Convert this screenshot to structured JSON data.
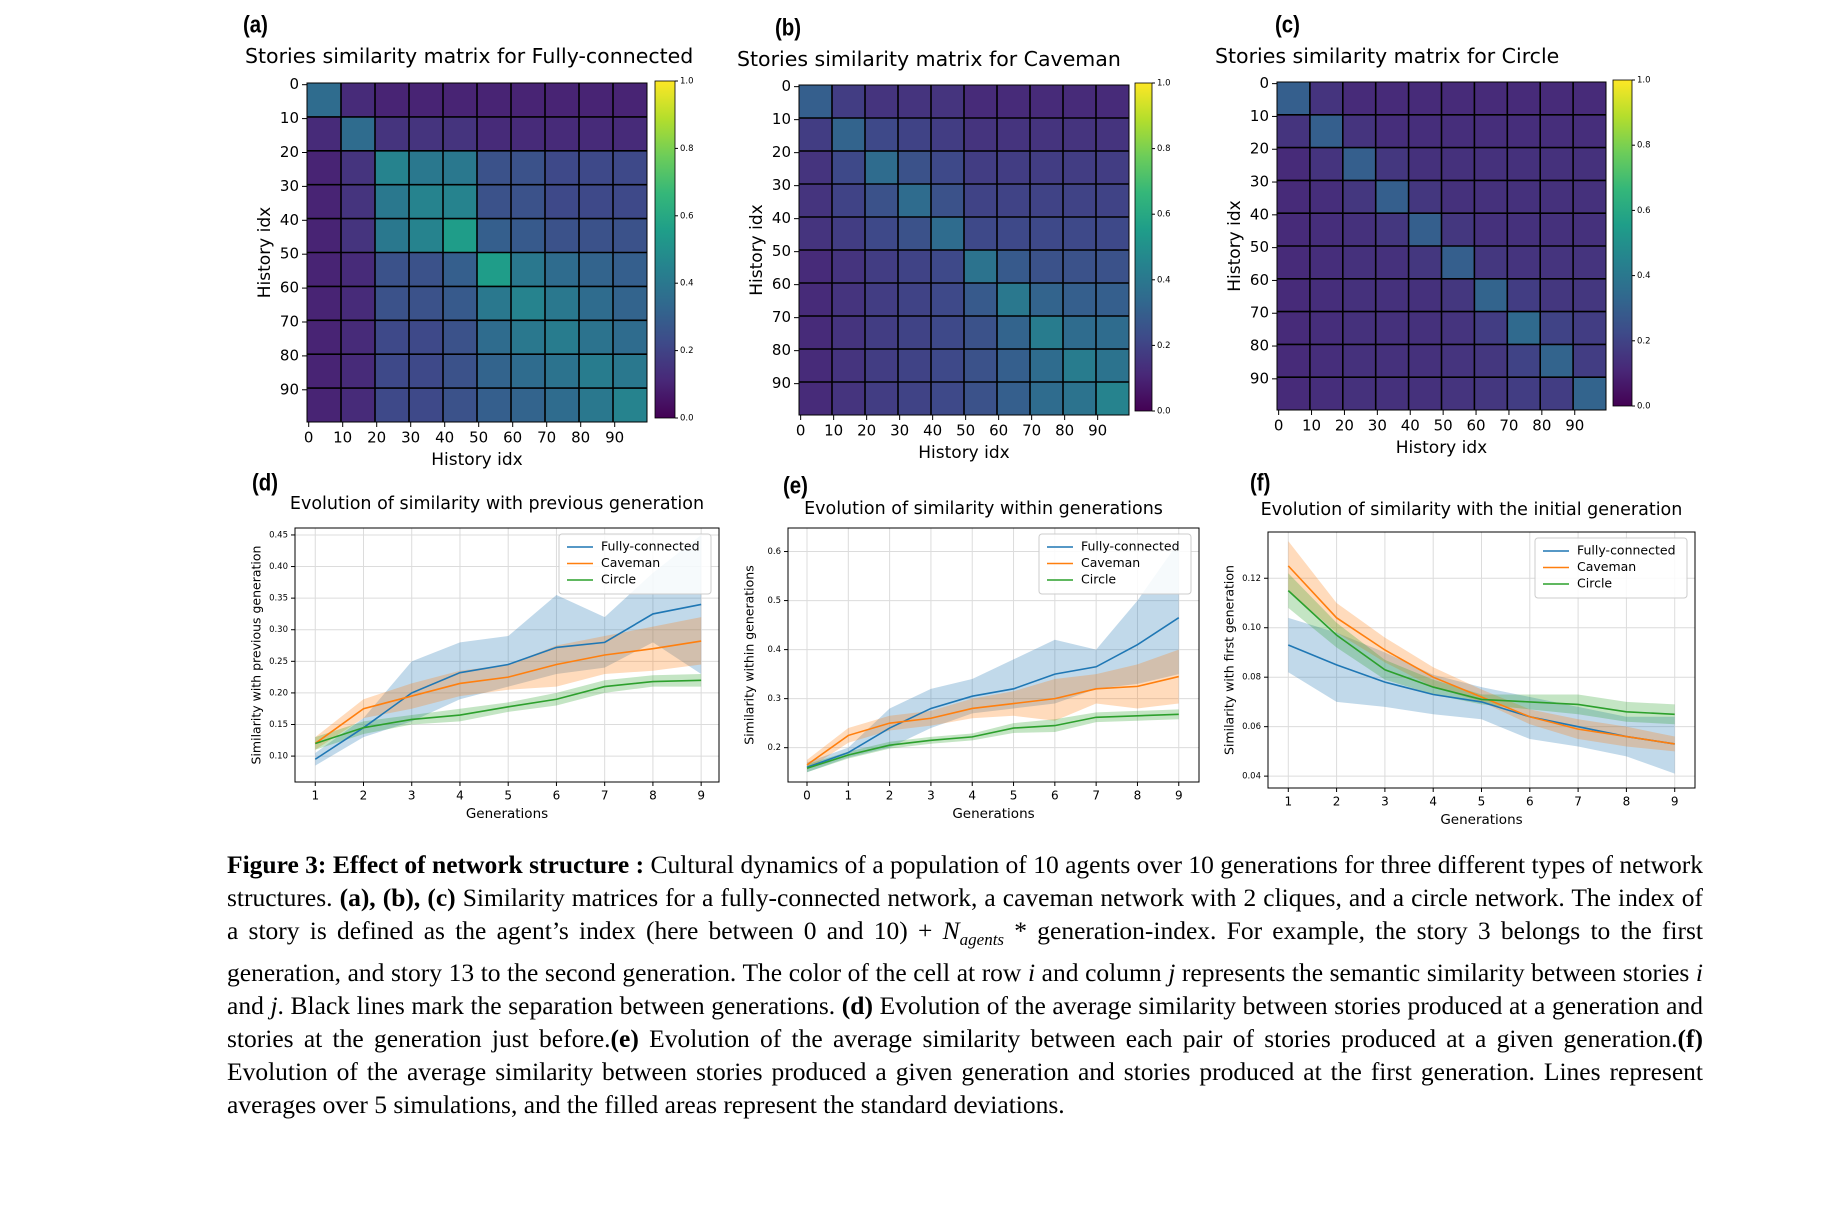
{
  "chart_data": [
    {
      "type": "heatmap",
      "panel_label": "(a)",
      "title": "Stories similarity matrix for Fully-connected",
      "xlabel": "History idx",
      "ylabel": "History idx",
      "xlim": [
        -0.5,
        99.5
      ],
      "ylim": [
        99.5,
        -0.5
      ],
      "xticks": [
        0,
        10,
        20,
        30,
        40,
        50,
        60,
        70,
        80,
        90
      ],
      "yticks": [
        0,
        10,
        20,
        30,
        40,
        50,
        60,
        70,
        80,
        90
      ],
      "zlim": [
        0,
        1
      ],
      "zticks": [
        {
          "value": 0,
          "label": "0.0"
        },
        0.2,
        0.4,
        0.6,
        0.8,
        {
          "value": 1,
          "label": "1.0"
        }
      ],
      "grid": true,
      "z": [
        [
          0.35,
          0.12,
          0.1,
          0.1,
          0.1,
          0.1,
          0.1,
          0.1,
          0.1,
          0.1
        ],
        [
          0.12,
          0.35,
          0.15,
          0.15,
          0.15,
          0.12,
          0.12,
          0.12,
          0.12,
          0.12
        ],
        [
          0.1,
          0.15,
          0.45,
          0.4,
          0.4,
          0.25,
          0.25,
          0.22,
          0.22,
          0.22
        ],
        [
          0.1,
          0.15,
          0.4,
          0.45,
          0.45,
          0.25,
          0.25,
          0.22,
          0.22,
          0.22
        ],
        [
          0.1,
          0.15,
          0.4,
          0.45,
          0.55,
          0.3,
          0.28,
          0.25,
          0.25,
          0.25
        ],
        [
          0.1,
          0.12,
          0.25,
          0.25,
          0.3,
          0.55,
          0.4,
          0.35,
          0.32,
          0.3
        ],
        [
          0.1,
          0.12,
          0.25,
          0.25,
          0.28,
          0.4,
          0.45,
          0.4,
          0.35,
          0.32
        ],
        [
          0.1,
          0.12,
          0.22,
          0.22,
          0.25,
          0.35,
          0.4,
          0.42,
          0.38,
          0.35
        ],
        [
          0.1,
          0.12,
          0.22,
          0.22,
          0.25,
          0.32,
          0.35,
          0.38,
          0.42,
          0.4
        ],
        [
          0.1,
          0.12,
          0.22,
          0.22,
          0.25,
          0.3,
          0.32,
          0.35,
          0.4,
          0.45
        ]
      ]
    },
    {
      "type": "heatmap",
      "panel_label": "(b)",
      "title": "Stories similarity matrix for Caveman",
      "xlabel": "History idx",
      "ylabel": "History idx",
      "xlim": [
        -0.5,
        99.5
      ],
      "ylim": [
        99.5,
        -0.5
      ],
      "xticks": [
        0,
        10,
        20,
        30,
        40,
        50,
        60,
        70,
        80,
        90
      ],
      "yticks": [
        0,
        10,
        20,
        30,
        40,
        50,
        60,
        70,
        80,
        90
      ],
      "zlim": [
        0,
        1
      ],
      "zticks": [
        {
          "value": 0,
          "label": "0.0"
        },
        0.2,
        0.4,
        0.6,
        0.8,
        {
          "value": 1,
          "label": "1.0"
        }
      ],
      "grid": true,
      "z": [
        [
          0.3,
          0.18,
          0.15,
          0.15,
          0.15,
          0.12,
          0.12,
          0.12,
          0.12,
          0.12
        ],
        [
          0.18,
          0.32,
          0.22,
          0.2,
          0.18,
          0.15,
          0.15,
          0.15,
          0.15,
          0.15
        ],
        [
          0.15,
          0.22,
          0.35,
          0.25,
          0.22,
          0.18,
          0.18,
          0.18,
          0.18,
          0.18
        ],
        [
          0.15,
          0.2,
          0.25,
          0.35,
          0.25,
          0.2,
          0.2,
          0.2,
          0.2,
          0.2
        ],
        [
          0.15,
          0.18,
          0.22,
          0.25,
          0.35,
          0.22,
          0.22,
          0.22,
          0.22,
          0.22
        ],
        [
          0.12,
          0.15,
          0.18,
          0.2,
          0.22,
          0.38,
          0.28,
          0.25,
          0.25,
          0.25
        ],
        [
          0.12,
          0.15,
          0.18,
          0.2,
          0.22,
          0.28,
          0.4,
          0.32,
          0.3,
          0.3
        ],
        [
          0.12,
          0.15,
          0.18,
          0.2,
          0.22,
          0.25,
          0.32,
          0.42,
          0.35,
          0.35
        ],
        [
          0.12,
          0.15,
          0.18,
          0.2,
          0.22,
          0.25,
          0.3,
          0.35,
          0.42,
          0.38
        ],
        [
          0.12,
          0.15,
          0.18,
          0.2,
          0.22,
          0.25,
          0.3,
          0.35,
          0.38,
          0.45
        ]
      ]
    },
    {
      "type": "heatmap",
      "panel_label": "(c)",
      "title": "Stories similarity matrix for Circle",
      "xlabel": "History idx",
      "ylabel": "History idx",
      "xlim": [
        -0.5,
        99.5
      ],
      "ylim": [
        99.5,
        -0.5
      ],
      "xticks": [
        0,
        10,
        20,
        30,
        40,
        50,
        60,
        70,
        80,
        90
      ],
      "yticks": [
        0,
        10,
        20,
        30,
        40,
        50,
        60,
        70,
        80,
        90
      ],
      "zlim": [
        0,
        1
      ],
      "zticks": [
        {
          "value": 0,
          "label": "0.0"
        },
        0.2,
        0.4,
        0.6,
        0.8,
        {
          "value": 1,
          "label": "1.0"
        }
      ],
      "grid": true,
      "z": [
        [
          0.3,
          0.15,
          0.12,
          0.12,
          0.12,
          0.12,
          0.12,
          0.12,
          0.12,
          0.12
        ],
        [
          0.15,
          0.3,
          0.15,
          0.13,
          0.13,
          0.13,
          0.13,
          0.13,
          0.13,
          0.13
        ],
        [
          0.12,
          0.15,
          0.3,
          0.16,
          0.14,
          0.14,
          0.14,
          0.14,
          0.14,
          0.14
        ],
        [
          0.12,
          0.13,
          0.16,
          0.3,
          0.16,
          0.14,
          0.14,
          0.14,
          0.14,
          0.14
        ],
        [
          0.12,
          0.13,
          0.14,
          0.16,
          0.3,
          0.16,
          0.14,
          0.14,
          0.14,
          0.14
        ],
        [
          0.12,
          0.13,
          0.14,
          0.14,
          0.16,
          0.3,
          0.16,
          0.15,
          0.15,
          0.15
        ],
        [
          0.12,
          0.13,
          0.14,
          0.14,
          0.14,
          0.16,
          0.32,
          0.18,
          0.16,
          0.16
        ],
        [
          0.12,
          0.13,
          0.14,
          0.14,
          0.14,
          0.15,
          0.18,
          0.34,
          0.2,
          0.18
        ],
        [
          0.12,
          0.13,
          0.14,
          0.14,
          0.14,
          0.15,
          0.16,
          0.2,
          0.32,
          0.18
        ],
        [
          0.12,
          0.13,
          0.14,
          0.14,
          0.14,
          0.15,
          0.16,
          0.18,
          0.18,
          0.32
        ]
      ]
    },
    {
      "type": "line",
      "panel_label": "(d)",
      "title": "Evolution of similarity with previous generation",
      "xlabel": "Generations",
      "ylabel": "Similarity with previous generation",
      "x": [
        1,
        2,
        3,
        4,
        5,
        6,
        7,
        8,
        9
      ],
      "xlim": [
        0.58,
        9.37
      ],
      "xticks": [
        1,
        2,
        3,
        4,
        5,
        6,
        7,
        8,
        9
      ],
      "ylim": [
        0.059,
        0.461
      ],
      "yticks": [
        {
          "value": 0.1,
          "label": "0.10"
        },
        0.15,
        {
          "value": 0.2,
          "label": "0.20"
        },
        0.25,
        {
          "value": 0.3,
          "label": "0.30"
        },
        0.35,
        {
          "value": 0.4,
          "label": "0.40"
        },
        0.45
      ],
      "grid": true,
      "legend": "upper right",
      "series": [
        {
          "name": "Fully-connected",
          "color": "#1f77b4",
          "values": [
            0.095,
            0.145,
            0.2,
            0.232,
            0.245,
            0.272,
            0.28,
            0.325,
            0.34
          ],
          "lower": [
            0.085,
            0.13,
            0.155,
            0.19,
            0.21,
            0.23,
            0.24,
            0.28,
            0.23
          ],
          "upper": [
            0.105,
            0.16,
            0.25,
            0.28,
            0.29,
            0.355,
            0.32,
            0.39,
            0.45
          ]
        },
        {
          "name": "Caveman",
          "color": "#ff7f0e",
          "values": [
            0.12,
            0.175,
            0.195,
            0.215,
            0.225,
            0.245,
            0.26,
            0.27,
            0.282
          ],
          "lower": [
            0.11,
            0.16,
            0.175,
            0.195,
            0.205,
            0.21,
            0.23,
            0.235,
            0.245
          ],
          "upper": [
            0.13,
            0.19,
            0.215,
            0.235,
            0.245,
            0.275,
            0.29,
            0.305,
            0.32
          ]
        },
        {
          "name": "Circle",
          "color": "#2ca02c",
          "values": [
            0.12,
            0.145,
            0.158,
            0.165,
            0.178,
            0.19,
            0.21,
            0.218,
            0.22
          ],
          "lower": [
            0.11,
            0.135,
            0.15,
            0.155,
            0.17,
            0.18,
            0.2,
            0.21,
            0.21
          ],
          "upper": [
            0.13,
            0.155,
            0.165,
            0.175,
            0.185,
            0.2,
            0.22,
            0.228,
            0.23
          ]
        }
      ]
    },
    {
      "type": "line",
      "panel_label": "(e)",
      "title": "Evolution of similarity within generations",
      "xlabel": "Generations",
      "ylabel": "Similarity within generations",
      "x": [
        0,
        1,
        2,
        3,
        4,
        5,
        6,
        7,
        8,
        9
      ],
      "xlim": [
        -0.46,
        9.49
      ],
      "xticks": [
        0,
        1,
        2,
        3,
        4,
        5,
        6,
        7,
        8,
        9
      ],
      "ylim": [
        0.13,
        0.648
      ],
      "yticks": [
        0.2,
        0.3,
        0.4,
        0.5,
        0.6
      ],
      "grid": true,
      "legend": "upper right",
      "series": [
        {
          "name": "Fully-connected",
          "color": "#1f77b4",
          "values": [
            0.16,
            0.19,
            0.24,
            0.28,
            0.305,
            0.32,
            0.35,
            0.365,
            0.41,
            0.465
          ],
          "lower": [
            0.15,
            0.18,
            0.2,
            0.24,
            0.27,
            0.28,
            0.29,
            0.32,
            0.33,
            0.35
          ],
          "upper": [
            0.17,
            0.2,
            0.28,
            0.32,
            0.34,
            0.38,
            0.42,
            0.4,
            0.5,
            0.62
          ]
        },
        {
          "name": "Caveman",
          "color": "#ff7f0e",
          "values": [
            0.165,
            0.225,
            0.25,
            0.26,
            0.28,
            0.29,
            0.3,
            0.32,
            0.325,
            0.345
          ],
          "lower": [
            0.155,
            0.21,
            0.235,
            0.245,
            0.26,
            0.265,
            0.255,
            0.29,
            0.28,
            0.29
          ],
          "upper": [
            0.175,
            0.24,
            0.265,
            0.275,
            0.3,
            0.315,
            0.34,
            0.35,
            0.37,
            0.4
          ]
        },
        {
          "name": "Circle",
          "color": "#2ca02c",
          "values": [
            0.158,
            0.185,
            0.205,
            0.215,
            0.222,
            0.24,
            0.245,
            0.262,
            0.265,
            0.268
          ],
          "lower": [
            0.15,
            0.178,
            0.198,
            0.208,
            0.215,
            0.23,
            0.232,
            0.252,
            0.255,
            0.258
          ],
          "upper": [
            0.166,
            0.192,
            0.212,
            0.222,
            0.229,
            0.25,
            0.258,
            0.272,
            0.275,
            0.278
          ]
        }
      ]
    },
    {
      "type": "line",
      "panel_label": "(f)",
      "title": "Evolution of similarity with the initial generation",
      "xlabel": "Generations",
      "ylabel": "Similarity with first generation",
      "x": [
        1,
        2,
        3,
        4,
        5,
        6,
        7,
        8,
        9
      ],
      "xlim": [
        0.58,
        9.42
      ],
      "xticks": [
        1,
        2,
        3,
        4,
        5,
        6,
        7,
        8,
        9
      ],
      "ylim": [
        0.0352,
        0.1387
      ],
      "yticks": [
        0.04,
        0.06,
        0.08,
        {
          "value": 0.1,
          "label": "0.10"
        },
        0.12
      ],
      "grid": true,
      "legend": "upper right",
      "series": [
        {
          "name": "Fully-connected",
          "color": "#1f77b4",
          "values": [
            0.093,
            0.085,
            0.078,
            0.073,
            0.07,
            0.064,
            0.06,
            0.056,
            0.053
          ],
          "lower": [
            0.082,
            0.07,
            0.068,
            0.065,
            0.063,
            0.055,
            0.052,
            0.048,
            0.041
          ],
          "upper": [
            0.104,
            0.098,
            0.09,
            0.081,
            0.076,
            0.072,
            0.068,
            0.064,
            0.064
          ]
        },
        {
          "name": "Caveman",
          "color": "#ff7f0e",
          "values": [
            0.125,
            0.104,
            0.091,
            0.08,
            0.072,
            0.064,
            0.059,
            0.056,
            0.053
          ],
          "lower": [
            0.115,
            0.098,
            0.086,
            0.076,
            0.07,
            0.061,
            0.055,
            0.052,
            0.05
          ],
          "upper": [
            0.135,
            0.11,
            0.096,
            0.084,
            0.075,
            0.067,
            0.063,
            0.06,
            0.056
          ]
        },
        {
          "name": "Circle",
          "color": "#2ca02c",
          "values": [
            0.115,
            0.097,
            0.083,
            0.076,
            0.071,
            0.07,
            0.069,
            0.066,
            0.065
          ],
          "lower": [
            0.108,
            0.092,
            0.079,
            0.073,
            0.069,
            0.067,
            0.065,
            0.062,
            0.061
          ],
          "upper": [
            0.122,
            0.102,
            0.087,
            0.079,
            0.073,
            0.073,
            0.073,
            0.07,
            0.069
          ]
        }
      ]
    }
  ],
  "caption": {
    "parts": [
      {
        "text": "Figure 3:  Effect of network structure :",
        "bold": true
      },
      {
        "text": " Cultural dynamics of a population of 10 agents over 10 generations for three different types of network structures. "
      },
      {
        "text": "(a), (b), (c)",
        "bold": true
      },
      {
        "text": " Similarity matrices for a fully-connected network, a caveman network with 2 cliques, and a circle network. The index of a story is defined as the agent’s index (here between 0 and 10) + "
      },
      {
        "text": "N",
        "italic": true
      },
      {
        "text": "agents",
        "sub": true
      },
      {
        "text": " * generation-index. For example, the story 3 belongs to the first generation, and story 13 to the second generation. The color of the cell at row "
      },
      {
        "text": "i",
        "italic": true
      },
      {
        "text": " and column "
      },
      {
        "text": "j",
        "italic": true
      },
      {
        "text": " represents the semantic similarity between stories "
      },
      {
        "text": "i",
        "italic": true
      },
      {
        "text": " and "
      },
      {
        "text": "j",
        "italic": true
      },
      {
        "text": ". Black lines mark the separation between generations. "
      },
      {
        "text": "(d)",
        "bold": true
      },
      {
        "text": " Evolution of the average similarity between stories produced at a generation and stories at the generation just before."
      },
      {
        "text": "(e)",
        "bold": true
      },
      {
        "text": " Evolution of the average similarity between each pair of stories produced at a given generation."
      },
      {
        "text": "(f)",
        "bold": true
      },
      {
        "text": " Evolution of the average similarity between stories produced a given generation and stories produced at the first generation. Lines represent averages over 5 simulations, and the filled areas represent the standard deviations."
      }
    ]
  }
}
